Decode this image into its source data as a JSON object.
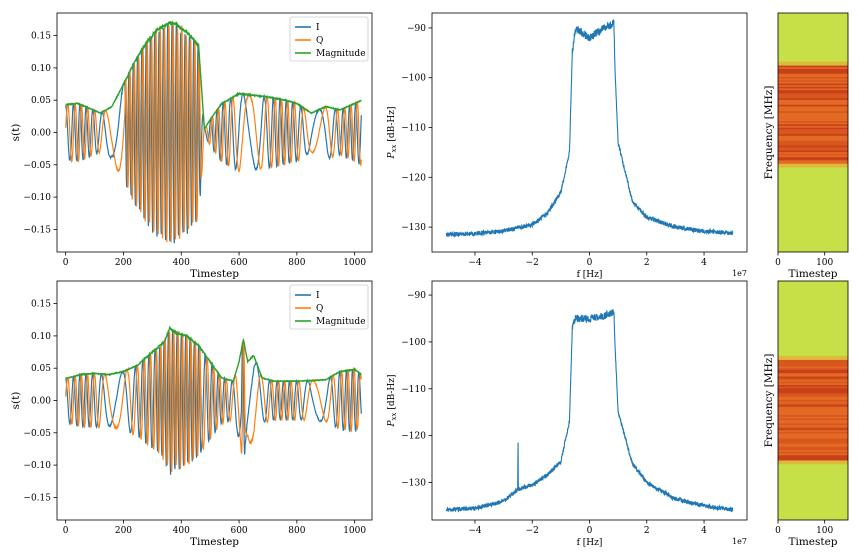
{
  "colors": {
    "I": "#1f77b4",
    "Q": "#ff7f0e",
    "Magnitude": "#2ca02c",
    "psd": "#1f77b4",
    "spec_background": "#c8e048",
    "spec_band": "#d2521c"
  },
  "chart_data": [
    {
      "id": "iq-top",
      "type": "line",
      "xlabel": "Timestep",
      "ylabel": "s(t)",
      "xlim": [
        -30,
        1060
      ],
      "ylim": [
        -0.185,
        0.185
      ],
      "xticks": [
        0,
        200,
        400,
        600,
        800,
        1000
      ],
      "yticks": [
        -0.15,
        -0.1,
        -0.05,
        0.0,
        0.05,
        0.1,
        0.15
      ],
      "ytick_labels": [
        "−0.15",
        "−0.10",
        "−0.05",
        "0.00",
        "0.05",
        "0.10",
        "0.15"
      ],
      "legend": {
        "position": "top-right",
        "entries": [
          "I",
          "Q",
          "Magnitude"
        ]
      },
      "series": [
        {
          "name": "I",
          "color_key": "I"
        },
        {
          "name": "Q",
          "color_key": "Q"
        },
        {
          "name": "Magnitude",
          "color_key": "Magnitude",
          "envelope_points": [
            [
              0,
              0.043
            ],
            [
              40,
              0.045
            ],
            [
              80,
              0.038
            ],
            [
              120,
              0.03
            ],
            [
              160,
              0.04
            ],
            [
              200,
              0.075
            ],
            [
              240,
              0.11
            ],
            [
              280,
              0.14
            ],
            [
              320,
              0.16
            ],
            [
              360,
              0.17
            ],
            [
              380,
              0.168
            ],
            [
              420,
              0.155
            ],
            [
              460,
              0.135
            ],
            [
              480,
              0.005
            ],
            [
              500,
              0.02
            ],
            [
              540,
              0.045
            ],
            [
              560,
              0.05
            ],
            [
              600,
              0.06
            ],
            [
              640,
              0.058
            ],
            [
              700,
              0.055
            ],
            [
              760,
              0.05
            ],
            [
              800,
              0.045
            ],
            [
              850,
              0.03
            ],
            [
              900,
              0.04
            ],
            [
              950,
              0.035
            ],
            [
              1000,
              0.045
            ],
            [
              1024,
              0.05
            ]
          ]
        }
      ],
      "num_samples": 1024
    },
    {
      "id": "psd-top",
      "type": "line",
      "xlabel": "f [Hz]",
      "ylabel": "P_xx [dB-Hz]",
      "x_exponent_label": "1e7",
      "xlim": [
        -5.5,
        5.5
      ],
      "ylim": [
        -135,
        -87
      ],
      "xticks": [
        -4,
        -2,
        0,
        2,
        4
      ],
      "xtick_labels": [
        "−4",
        "−2",
        "0",
        "2",
        "4"
      ],
      "yticks": [
        -130,
        -120,
        -110,
        -100,
        -90
      ],
      "ytick_labels": [
        "−130",
        "−120",
        "−110",
        "−100",
        "−90"
      ],
      "series": [
        {
          "name": "PSD",
          "color_key": "psd",
          "key_points": [
            [
              -5.0,
              -131.5
            ],
            [
              -4.0,
              -131.3
            ],
            [
              -3.0,
              -130.8
            ],
            [
              -2.0,
              -129.5
            ],
            [
              -1.5,
              -127.5
            ],
            [
              -1.0,
              -123.0
            ],
            [
              -0.7,
              -115.0
            ],
            [
              -0.6,
              -95.0
            ],
            [
              -0.5,
              -90.0
            ],
            [
              0.0,
              -92.0
            ],
            [
              0.5,
              -90.0
            ],
            [
              0.85,
              -89.0
            ],
            [
              0.9,
              -100.0
            ],
            [
              1.0,
              -113.0
            ],
            [
              1.5,
              -125.0
            ],
            [
              2.0,
              -128.0
            ],
            [
              3.0,
              -130.0
            ],
            [
              4.0,
              -130.8
            ],
            [
              5.0,
              -131.2
            ]
          ]
        }
      ]
    },
    {
      "id": "spec-top",
      "type": "heatmap",
      "xlabel": "Timestep",
      "ylabel": "Frequency [MHz]",
      "xticks": [
        0,
        100
      ],
      "xlim": [
        0,
        150
      ],
      "band_frequency_fraction": [
        0.22,
        0.63
      ]
    },
    {
      "id": "iq-bottom",
      "type": "line",
      "xlabel": "Timestep",
      "ylabel": "s(t)",
      "xlim": [
        -30,
        1060
      ],
      "ylim": [
        -0.185,
        0.185
      ],
      "xticks": [
        0,
        200,
        400,
        600,
        800,
        1000
      ],
      "yticks": [
        -0.15,
        -0.1,
        -0.05,
        0.0,
        0.05,
        0.1,
        0.15
      ],
      "ytick_labels": [
        "−0.15",
        "−0.10",
        "−0.05",
        "0.00",
        "0.05",
        "0.10",
        "0.15"
      ],
      "legend": {
        "position": "top-right",
        "entries": [
          "I",
          "Q",
          "Magnitude"
        ]
      },
      "series": [
        {
          "name": "I",
          "color_key": "I"
        },
        {
          "name": "Q",
          "color_key": "Q"
        },
        {
          "name": "Magnitude",
          "color_key": "Magnitude",
          "envelope_points": [
            [
              0,
              0.034
            ],
            [
              50,
              0.04
            ],
            [
              100,
              0.042
            ],
            [
              150,
              0.04
            ],
            [
              200,
              0.045
            ],
            [
              250,
              0.055
            ],
            [
              300,
              0.075
            ],
            [
              340,
              0.09
            ],
            [
              360,
              0.112
            ],
            [
              380,
              0.105
            ],
            [
              420,
              0.1
            ],
            [
              460,
              0.085
            ],
            [
              500,
              0.06
            ],
            [
              540,
              0.035
            ],
            [
              580,
              0.03
            ],
            [
              600,
              0.06
            ],
            [
              615,
              0.095
            ],
            [
              630,
              0.06
            ],
            [
              650,
              0.07
            ],
            [
              680,
              0.035
            ],
            [
              720,
              0.03
            ],
            [
              800,
              0.03
            ],
            [
              900,
              0.032
            ],
            [
              950,
              0.045
            ],
            [
              1000,
              0.048
            ],
            [
              1024,
              0.04
            ]
          ]
        }
      ],
      "num_samples": 1024
    },
    {
      "id": "psd-bottom",
      "type": "line",
      "xlabel": "f [Hz]",
      "ylabel": "P_xx [dB-Hz]",
      "x_exponent_label": "1e7",
      "xlim": [
        -5.5,
        5.5
      ],
      "ylim": [
        -138,
        -87
      ],
      "xticks": [
        -4,
        -2,
        0,
        2,
        4
      ],
      "xtick_labels": [
        "−4",
        "−2",
        "0",
        "2",
        "4"
      ],
      "yticks": [
        -130,
        -120,
        -110,
        -100,
        -90
      ],
      "ytick_labels": [
        "−130",
        "−120",
        "−110",
        "−100",
        "−90"
      ],
      "series": [
        {
          "name": "PSD",
          "color_key": "psd",
          "key_points": [
            [
              -5.0,
              -135.8
            ],
            [
              -4.0,
              -135.5
            ],
            [
              -3.0,
              -134.0
            ],
            [
              -2.5,
              -131.5
            ],
            [
              -2.0,
              -130.5
            ],
            [
              -1.5,
              -128.5
            ],
            [
              -1.0,
              -125.5
            ],
            [
              -0.7,
              -117.0
            ],
            [
              -0.6,
              -97.0
            ],
            [
              -0.5,
              -95.0
            ],
            [
              0.0,
              -95.0
            ],
            [
              0.5,
              -94.5
            ],
            [
              0.85,
              -93.5
            ],
            [
              0.9,
              -102.0
            ],
            [
              1.0,
              -115.0
            ],
            [
              1.5,
              -126.0
            ],
            [
              2.0,
              -130.0
            ],
            [
              3.0,
              -133.5
            ],
            [
              4.0,
              -135.0
            ],
            [
              5.0,
              -135.8
            ]
          ],
          "spike": {
            "x": -2.5,
            "y": -124.5
          }
        }
      ]
    },
    {
      "id": "spec-bottom",
      "type": "heatmap",
      "xlabel": "Timestep",
      "ylabel": "Frequency [MHz]",
      "xticks": [
        0,
        100
      ],
      "xlim": [
        0,
        150
      ],
      "band_frequency_fraction": [
        0.33,
        0.75
      ]
    }
  ]
}
